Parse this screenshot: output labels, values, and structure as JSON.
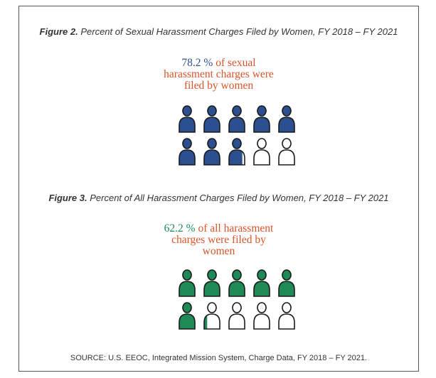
{
  "figure2": {
    "label": "Figure 2.",
    "title": " Percent of Sexual Harassment Charges Filed by Women, FY 2018 – FY 2021",
    "value_text": "78.2 %",
    "caption_line1_rest": " of sexual",
    "caption_line2": "harassment charges were",
    "caption_line3": "filed by women",
    "color_fill": "#2b4f8f",
    "color_text": "#d8542a"
  },
  "figure3": {
    "label": "Figure 3.",
    "title": " Percent of All Harassment Charges Filed by Women, FY 2018 – FY 2021",
    "value_text": "62.2 %",
    "caption_line1_rest": " of all harassment",
    "caption_line2": "charges were filed by",
    "caption_line3": "women",
    "color_fill": "#1e8a55",
    "color_text": "#d8542a"
  },
  "source": "SOURCE: U.S. EEOC, Integrated Mission System, Charge Data, FY 2018 – FY 2021.",
  "chart_data": [
    {
      "type": "pictogram",
      "title": "Figure 2. Percent of Sexual Harassment Charges Filed by Women, FY 2018 – FY 2021",
      "value_percent": 78.2,
      "icons_total": 10,
      "icons_per_row": 5,
      "unit": "percent of charges filed by women"
    },
    {
      "type": "pictogram",
      "title": "Figure 3. Percent of All Harassment Charges Filed by Women, FY 2018 – FY 2021",
      "value_percent": 62.2,
      "icons_total": 10,
      "icons_per_row": 5,
      "unit": "percent of charges filed by women"
    }
  ]
}
